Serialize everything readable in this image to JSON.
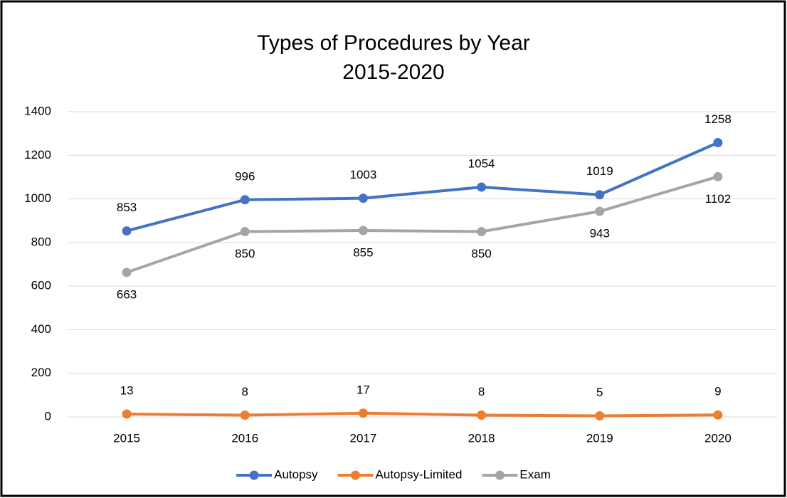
{
  "chart_data": {
    "type": "line",
    "title": "Types of Procedures by Year",
    "subtitle": "2015-2020",
    "categories": [
      "2015",
      "2016",
      "2017",
      "2018",
      "2019",
      "2020"
    ],
    "series": [
      {
        "name": "Autopsy",
        "color": "#4472c4",
        "values": [
          853,
          996,
          1003,
          1054,
          1019,
          1258
        ]
      },
      {
        "name": "Autopsy-Limited",
        "color": "#ed7d31",
        "values": [
          13,
          8,
          17,
          8,
          5,
          9
        ]
      },
      {
        "name": "Exam",
        "color": "#a5a5a5",
        "values": [
          663,
          850,
          855,
          850,
          943,
          1102
        ]
      }
    ],
    "ylim": [
      0,
      1400
    ],
    "yticks": [
      0,
      200,
      400,
      600,
      800,
      1000,
      1200,
      1400
    ],
    "grid": true,
    "legend": "bottom"
  }
}
